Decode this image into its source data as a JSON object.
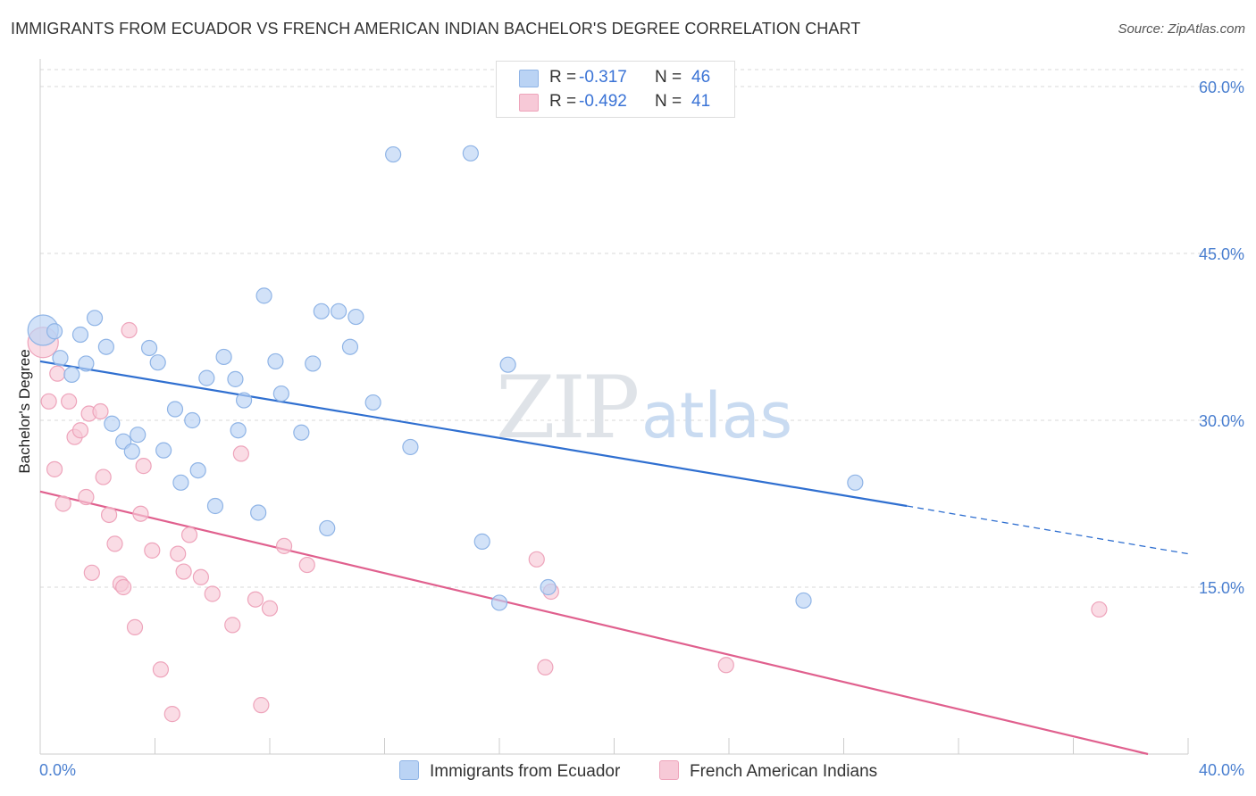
{
  "title": "IMMIGRANTS FROM ECUADOR VS FRENCH AMERICAN INDIAN BACHELOR'S DEGREE CORRELATION CHART",
  "source": "Source: ZipAtlas.com",
  "watermark": {
    "zip": "ZIP",
    "atlas": "atlas"
  },
  "legend": {
    "rows": [
      {
        "r_label": "R =",
        "r_value": "-0.317",
        "n_label": "N =",
        "n_value": "46"
      },
      {
        "r_label": "R =",
        "r_value": "-0.492",
        "n_label": "N =",
        "n_value": "41"
      }
    ]
  },
  "bottom_legend": {
    "series1": "Immigrants from Ecuador",
    "series2": "French American Indians"
  },
  "colors": {
    "series1_fill": "#bad3f4",
    "series1_stroke": "#8fb4e6",
    "series1_line": "#2f6fd0",
    "series2_fill": "#f7c9d7",
    "series2_stroke": "#eea4bb",
    "series2_line": "#e0608e",
    "grid": "#d9d9d9",
    "tick_label": "#4a7fd0"
  },
  "chart_data": {
    "type": "scatter",
    "title": "IMMIGRANTS FROM ECUADOR VS FRENCH AMERICAN INDIAN BACHELOR'S DEGREE CORRELATION CHART",
    "xlabel": "",
    "ylabel": "Bachelor's Degree",
    "xlim": [
      0,
      40
    ],
    "ylim": [
      0,
      60
    ],
    "x_tick_labels": [
      "0.0%",
      "40.0%"
    ],
    "y_ticks": [
      15,
      30,
      45,
      60
    ],
    "y_tick_labels": [
      "15.0%",
      "30.0%",
      "45.0%",
      "60.0%"
    ],
    "grid": true,
    "legend_placement": "top-center",
    "series": [
      {
        "name": "Immigrants from Ecuador",
        "R": -0.317,
        "N": 46,
        "trend": {
          "x0": 0,
          "y0": 35.3,
          "x1": 30.2,
          "y1": 22.3,
          "dashed_to_x": 40,
          "dashed_to_y": 18.0
        },
        "points": [
          [
            0.1,
            38.1
          ],
          [
            0.5,
            38.0
          ],
          [
            0.7,
            35.6
          ],
          [
            1.1,
            34.1
          ],
          [
            1.4,
            37.7
          ],
          [
            1.6,
            35.1
          ],
          [
            1.9,
            39.2
          ],
          [
            2.3,
            36.6
          ],
          [
            2.5,
            29.7
          ],
          [
            2.9,
            28.1
          ],
          [
            3.2,
            27.2
          ],
          [
            3.4,
            28.7
          ],
          [
            3.8,
            36.5
          ],
          [
            4.1,
            35.2
          ],
          [
            4.3,
            27.3
          ],
          [
            4.7,
            31.0
          ],
          [
            4.9,
            24.4
          ],
          [
            5.3,
            30.0
          ],
          [
            5.5,
            25.5
          ],
          [
            5.8,
            33.8
          ],
          [
            6.1,
            22.3
          ],
          [
            6.4,
            35.7
          ],
          [
            6.8,
            33.7
          ],
          [
            6.9,
            29.1
          ],
          [
            7.1,
            31.8
          ],
          [
            7.6,
            21.7
          ],
          [
            7.8,
            41.2
          ],
          [
            8.2,
            35.3
          ],
          [
            8.4,
            32.4
          ],
          [
            9.1,
            28.9
          ],
          [
            9.5,
            35.1
          ],
          [
            9.8,
            39.8
          ],
          [
            10.0,
            20.3
          ],
          [
            10.4,
            39.8
          ],
          [
            10.8,
            36.6
          ],
          [
            11.0,
            39.3
          ],
          [
            11.6,
            31.6
          ],
          [
            12.3,
            53.9
          ],
          [
            12.9,
            27.6
          ],
          [
            15.0,
            54.0
          ],
          [
            15.4,
            19.1
          ],
          [
            16.0,
            13.6
          ],
          [
            16.3,
            35.0
          ],
          [
            17.7,
            15.0
          ],
          [
            26.6,
            13.8
          ],
          [
            28.4,
            24.4
          ]
        ]
      },
      {
        "name": "French American Indians",
        "R": -0.492,
        "N": 41,
        "trend": {
          "x0": 0,
          "y0": 23.6,
          "x1": 38.6,
          "y1": 0
        },
        "points": [
          [
            0.1,
            37.0
          ],
          [
            0.3,
            31.7
          ],
          [
            0.5,
            25.6
          ],
          [
            0.6,
            34.2
          ],
          [
            0.8,
            22.5
          ],
          [
            1.0,
            31.7
          ],
          [
            1.2,
            28.5
          ],
          [
            1.4,
            29.1
          ],
          [
            1.6,
            23.1
          ],
          [
            1.7,
            30.6
          ],
          [
            1.8,
            16.3
          ],
          [
            2.1,
            30.8
          ],
          [
            2.2,
            24.9
          ],
          [
            2.4,
            21.5
          ],
          [
            2.6,
            18.9
          ],
          [
            2.8,
            15.3
          ],
          [
            2.9,
            15.0
          ],
          [
            3.1,
            38.1
          ],
          [
            3.3,
            11.4
          ],
          [
            3.5,
            21.6
          ],
          [
            3.6,
            25.9
          ],
          [
            3.9,
            18.3
          ],
          [
            4.2,
            7.6
          ],
          [
            4.6,
            3.6
          ],
          [
            4.8,
            18.0
          ],
          [
            5.0,
            16.4
          ],
          [
            5.2,
            19.7
          ],
          [
            5.6,
            15.9
          ],
          [
            6.0,
            14.4
          ],
          [
            6.7,
            11.6
          ],
          [
            7.0,
            27.0
          ],
          [
            7.5,
            13.9
          ],
          [
            7.7,
            4.4
          ],
          [
            8.0,
            13.1
          ],
          [
            8.5,
            18.7
          ],
          [
            9.3,
            17.0
          ],
          [
            17.3,
            17.5
          ],
          [
            17.6,
            7.8
          ],
          [
            17.8,
            14.6
          ],
          [
            23.9,
            8.0
          ],
          [
            36.9,
            13.0
          ]
        ]
      }
    ]
  }
}
